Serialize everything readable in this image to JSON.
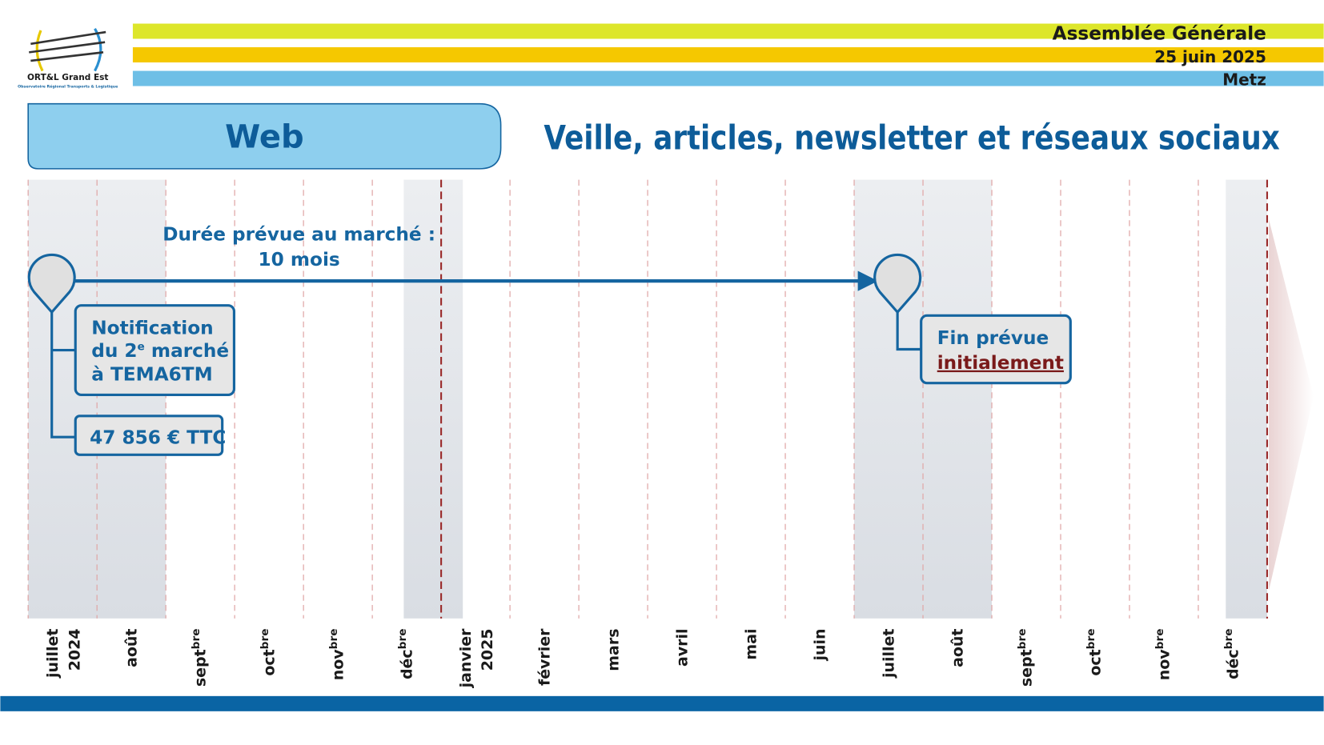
{
  "header": {
    "logo": {
      "name": "ORT&L Grand Est",
      "subtitle": "Observatoire Régional Transports & Logistique"
    },
    "event": "Assemblée Générale",
    "date": "25 juin 2025",
    "place": "Metz"
  },
  "section": "Web",
  "heading": "Veille, articles, newsletter et réseaux sociaux",
  "duration": [
    "Durée prévue au marché :",
    "10 mois"
  ],
  "notification": {
    "lines": [
      [
        "Notification"
      ],
      [
        "du 2",
        "e",
        " marché"
      ],
      [
        "à TEMA6TM"
      ]
    ]
  },
  "amount": "47 856 € TTC",
  "end": {
    "lines": [
      "Fin prévue",
      "initialement"
    ]
  },
  "months": [
    {
      "label": "juillet",
      "year": "2024"
    },
    {
      "label": "août"
    },
    {
      "label": "sept",
      "sup": "bre"
    },
    {
      "label": "oct",
      "sup": "bre"
    },
    {
      "label": "nov",
      "sup": "bre"
    },
    {
      "label": "déc",
      "sup": "bre"
    },
    {
      "label": "janvier",
      "year": "2025"
    },
    {
      "label": "février"
    },
    {
      "label": "mars"
    },
    {
      "label": "avril"
    },
    {
      "label": "mai"
    },
    {
      "label": "juin"
    },
    {
      "label": "juillet"
    },
    {
      "label": "août"
    },
    {
      "label": "sept",
      "sup": "bre"
    },
    {
      "label": "oct",
      "sup": "bre"
    },
    {
      "label": "nov",
      "sup": "bre"
    },
    {
      "label": "déc",
      "sup": "bre"
    }
  ]
}
